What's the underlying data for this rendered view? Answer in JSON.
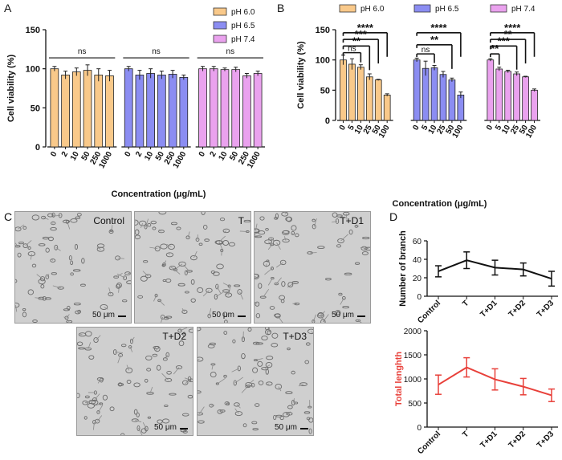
{
  "panel_letters": {
    "A": "A",
    "B": "B",
    "C": "C",
    "D": "D"
  },
  "colors": {
    "pH 6.0": "#f9c98a",
    "pH 6.5": "#8b8df2",
    "pH 7.4": "#eaa2ee",
    "line_black": "#111111",
    "line_red": "#e8403a"
  },
  "micrographs": {
    "scale_label": "50 μm",
    "images": [
      {
        "label": "Control"
      },
      {
        "label": "T"
      },
      {
        "label": "T+D1"
      },
      {
        "label": "T+D2"
      },
      {
        "label": "T+D3"
      }
    ]
  },
  "chart_data": [
    {
      "id": "A",
      "type": "bar",
      "title": "",
      "ylabel": "Cell viability (%)",
      "xlabel": "Concentration (μg/mL)",
      "ylim": [
        0,
        150
      ],
      "yticks": [
        0,
        50,
        100,
        150
      ],
      "categories": [
        "0",
        "2",
        "10",
        "50",
        "250",
        "1000"
      ],
      "legend": [
        "pH 6.0",
        "pH 6.5",
        "pH 7.4"
      ],
      "series": [
        {
          "name": "pH 6.0",
          "values": [
            100,
            92,
            96,
            98,
            92,
            91
          ],
          "errors": [
            3,
            5,
            5,
            7,
            8,
            7
          ]
        },
        {
          "name": "pH 6.5",
          "values": [
            100,
            92,
            94,
            92,
            93,
            89
          ],
          "errors": [
            3,
            6,
            6,
            5,
            5,
            3
          ]
        },
        {
          "name": "pH 7.4",
          "values": [
            100,
            100,
            99,
            99,
            91,
            94
          ],
          "errors": [
            3,
            3,
            2,
            3,
            3,
            3
          ]
        }
      ],
      "annotations": [
        "ns",
        "ns",
        "ns"
      ]
    },
    {
      "id": "B",
      "type": "bar",
      "title": "",
      "ylabel": "Cell viability (%)",
      "xlabel": "Concentration (μg/mL)",
      "ylim": [
        0,
        150
      ],
      "yticks": [
        0,
        50,
        100,
        150
      ],
      "categories": [
        "0",
        "5",
        "10",
        "25",
        "50",
        "100"
      ],
      "legend": [
        "pH 6.0",
        "pH 6.5",
        "pH 7.4"
      ],
      "series": [
        {
          "name": "pH 6.0",
          "values": [
            100,
            93,
            88,
            72,
            67,
            42
          ],
          "errors": [
            8,
            9,
            4,
            5,
            1,
            2
          ]
        },
        {
          "name": "pH 6.5",
          "values": [
            100,
            86,
            87,
            76,
            67,
            42
          ],
          "errors": [
            3,
            12,
            4,
            5,
            3,
            5
          ]
        },
        {
          "name": "pH 7.4",
          "values": [
            100,
            85,
            81,
            77,
            72,
            50
          ],
          "errors": [
            2,
            3,
            2,
            3,
            1,
            2
          ]
        }
      ],
      "significance": {
        "pH 6.0": [
          {
            "to": "10",
            "label": "ns"
          },
          {
            "to": "25",
            "label": "**"
          },
          {
            "to": "50",
            "label": "***"
          },
          {
            "to": "100",
            "label": "****"
          }
        ],
        "pH 6.5": [
          {
            "to": "10",
            "label": "ns"
          },
          {
            "to": "50",
            "label": "**"
          },
          {
            "to": "100",
            "label": "****"
          }
        ],
        "pH 7.4": [
          {
            "to": "5",
            "label": "**"
          },
          {
            "to": "25",
            "label": "***"
          },
          {
            "to": "50",
            "label": "**"
          },
          {
            "to": "100",
            "label": "****"
          }
        ]
      }
    },
    {
      "id": "D-top",
      "type": "line",
      "title": "",
      "ylabel": "Number of branch",
      "xlabel": "",
      "ylim": [
        0,
        60
      ],
      "yticks": [
        0,
        20,
        40,
        60
      ],
      "categories": [
        "Control",
        "T",
        "T+D1",
        "T+D2",
        "T+D3"
      ],
      "values": [
        27,
        39,
        31,
        29,
        19
      ],
      "errors": [
        6,
        9,
        8,
        7,
        8
      ],
      "color": "#111111"
    },
    {
      "id": "D-bottom",
      "type": "line",
      "title": "",
      "ylabel": "Total lenghth",
      "xlabel": "",
      "ylim": [
        0,
        2000
      ],
      "yticks": [
        0,
        500,
        1000,
        1500,
        2000
      ],
      "categories": [
        "Control",
        "T",
        "T+D1",
        "T+D2",
        "T+D3"
      ],
      "values": [
        880,
        1240,
        990,
        840,
        660
      ],
      "errors": [
        200,
        200,
        220,
        170,
        130
      ],
      "color": "#e8403a"
    }
  ]
}
